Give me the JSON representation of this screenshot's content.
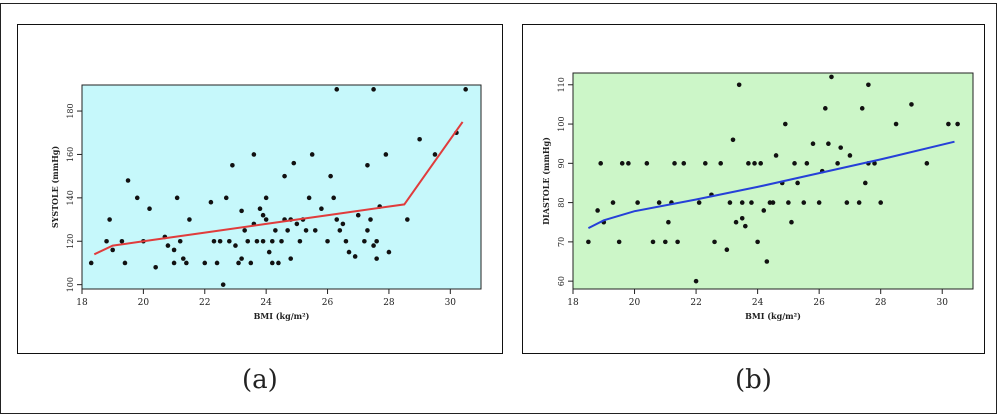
{
  "captions": {
    "a": "(a)",
    "b": "(b)"
  },
  "chart_data": [
    {
      "type": "scatter",
      "xlabel": "BMI (kg/m²)",
      "ylabel": "SYSTOLE (mmHg)",
      "xlim": [
        18,
        31
      ],
      "ylim": [
        98,
        192
      ],
      "xticks": [
        "18",
        "20",
        "22",
        "24",
        "26",
        "28",
        "30"
      ],
      "yticks": [
        "100",
        "120",
        "140",
        "160",
        "180"
      ],
      "background": "#c6f8fb",
      "fit_color": "#e03c3c",
      "fit_line": {
        "x": [
          18.4,
          19.0,
          20.0,
          22.0,
          24.0,
          26.0,
          28.5,
          30.4
        ],
        "y": [
          114,
          118,
          120,
          124,
          128,
          132,
          137,
          175
        ]
      },
      "points": {
        "x": [
          18.3,
          18.8,
          18.9,
          19.0,
          19.3,
          19.4,
          19.5,
          19.8,
          20.0,
          20.2,
          20.4,
          20.7,
          20.8,
          21.0,
          21.0,
          21.1,
          21.2,
          21.3,
          21.4,
          21.5,
          22.0,
          22.2,
          22.3,
          22.4,
          22.5,
          22.6,
          22.7,
          22.8,
          22.9,
          23.0,
          23.1,
          23.2,
          23.2,
          23.3,
          23.4,
          23.5,
          23.6,
          23.6,
          23.7,
          23.8,
          23.9,
          23.9,
          24.0,
          24.0,
          24.1,
          24.2,
          24.2,
          24.3,
          24.4,
          24.5,
          24.6,
          24.6,
          24.7,
          24.8,
          24.8,
          24.9,
          25.0,
          25.1,
          25.2,
          25.3,
          25.4,
          25.5,
          25.6,
          25.8,
          26.0,
          26.1,
          26.2,
          26.3,
          26.3,
          26.4,
          26.5,
          26.6,
          26.7,
          26.9,
          27.0,
          27.2,
          27.3,
          27.3,
          27.4,
          27.5,
          27.5,
          27.6,
          27.6,
          27.7,
          27.9,
          28.0,
          28.6,
          29.0,
          29.5,
          30.2,
          30.5
        ],
        "y": [
          110,
          120,
          130,
          116,
          120,
          110,
          148,
          140,
          120,
          135,
          108,
          122,
          118,
          116,
          110,
          140,
          120,
          112,
          110,
          130,
          110,
          138,
          120,
          110,
          120,
          100,
          140,
          120,
          155,
          118,
          110,
          112,
          134,
          125,
          120,
          110,
          160,
          128,
          120,
          135,
          120,
          132,
          140,
          130,
          115,
          120,
          110,
          125,
          110,
          120,
          130,
          150,
          125,
          130,
          112,
          156,
          128,
          120,
          130,
          125,
          140,
          160,
          125,
          135,
          120,
          150,
          140,
          190,
          130,
          125,
          128,
          120,
          115,
          113,
          132,
          120,
          125,
          155,
          130,
          118,
          190,
          112,
          120,
          136,
          160,
          115,
          130,
          167,
          160,
          170,
          190
        ]
      }
    },
    {
      "type": "scatter",
      "xlabel": "BMI (kg/m²)",
      "ylabel": "DIASTOLE (mmHg)",
      "xlim": [
        18,
        31
      ],
      "ylim": [
        58,
        113
      ],
      "xticks": [
        "18",
        "20",
        "22",
        "24",
        "26",
        "28",
        "30"
      ],
      "yticks": [
        "60",
        "70",
        "80",
        "90",
        "100",
        "110"
      ],
      "background": "#ccf6c8",
      "fit_color": "#2640d8",
      "fit_line": {
        "x": [
          18.5,
          19.0,
          20.0,
          22.0,
          24.0,
          26.0,
          28.0,
          30.4
        ],
        "y": [
          73.5,
          75.5,
          77.8,
          80.8,
          84.0,
          87.5,
          91.0,
          95.5
        ]
      },
      "points": {
        "x": [
          18.5,
          18.8,
          18.9,
          19.0,
          19.3,
          19.5,
          19.6,
          19.8,
          20.1,
          20.4,
          20.6,
          20.8,
          21.0,
          21.1,
          21.2,
          21.3,
          21.4,
          21.6,
          22.0,
          22.1,
          22.3,
          22.5,
          22.6,
          22.8,
          23.0,
          23.1,
          23.2,
          23.3,
          23.4,
          23.5,
          23.5,
          23.6,
          23.7,
          23.8,
          23.9,
          24.0,
          24.1,
          24.2,
          24.3,
          24.4,
          24.5,
          24.6,
          24.8,
          24.9,
          25.0,
          25.1,
          25.2,
          25.3,
          25.5,
          25.6,
          25.8,
          26.0,
          26.1,
          26.2,
          26.3,
          26.4,
          26.6,
          26.7,
          26.9,
          27.0,
          27.3,
          27.4,
          27.5,
          27.6,
          27.6,
          27.8,
          28.0,
          28.5,
          29.0,
          29.5,
          30.2,
          30.5
        ],
        "y": [
          70,
          78,
          90,
          75,
          80,
          70,
          90,
          90,
          80,
          90,
          70,
          80,
          70,
          75,
          80,
          90,
          70,
          90,
          60,
          80,
          90,
          82,
          70,
          90,
          68,
          80,
          96,
          75,
          110,
          80,
          76,
          74,
          90,
          80,
          90,
          70,
          90,
          78,
          65,
          80,
          80,
          92,
          85,
          100,
          80,
          75,
          90,
          85,
          80,
          90,
          95,
          80,
          88,
          104,
          95,
          112,
          90,
          94,
          80,
          92,
          80,
          104,
          85,
          90,
          110,
          90,
          80,
          100,
          105,
          90,
          100,
          100
        ]
      }
    }
  ]
}
